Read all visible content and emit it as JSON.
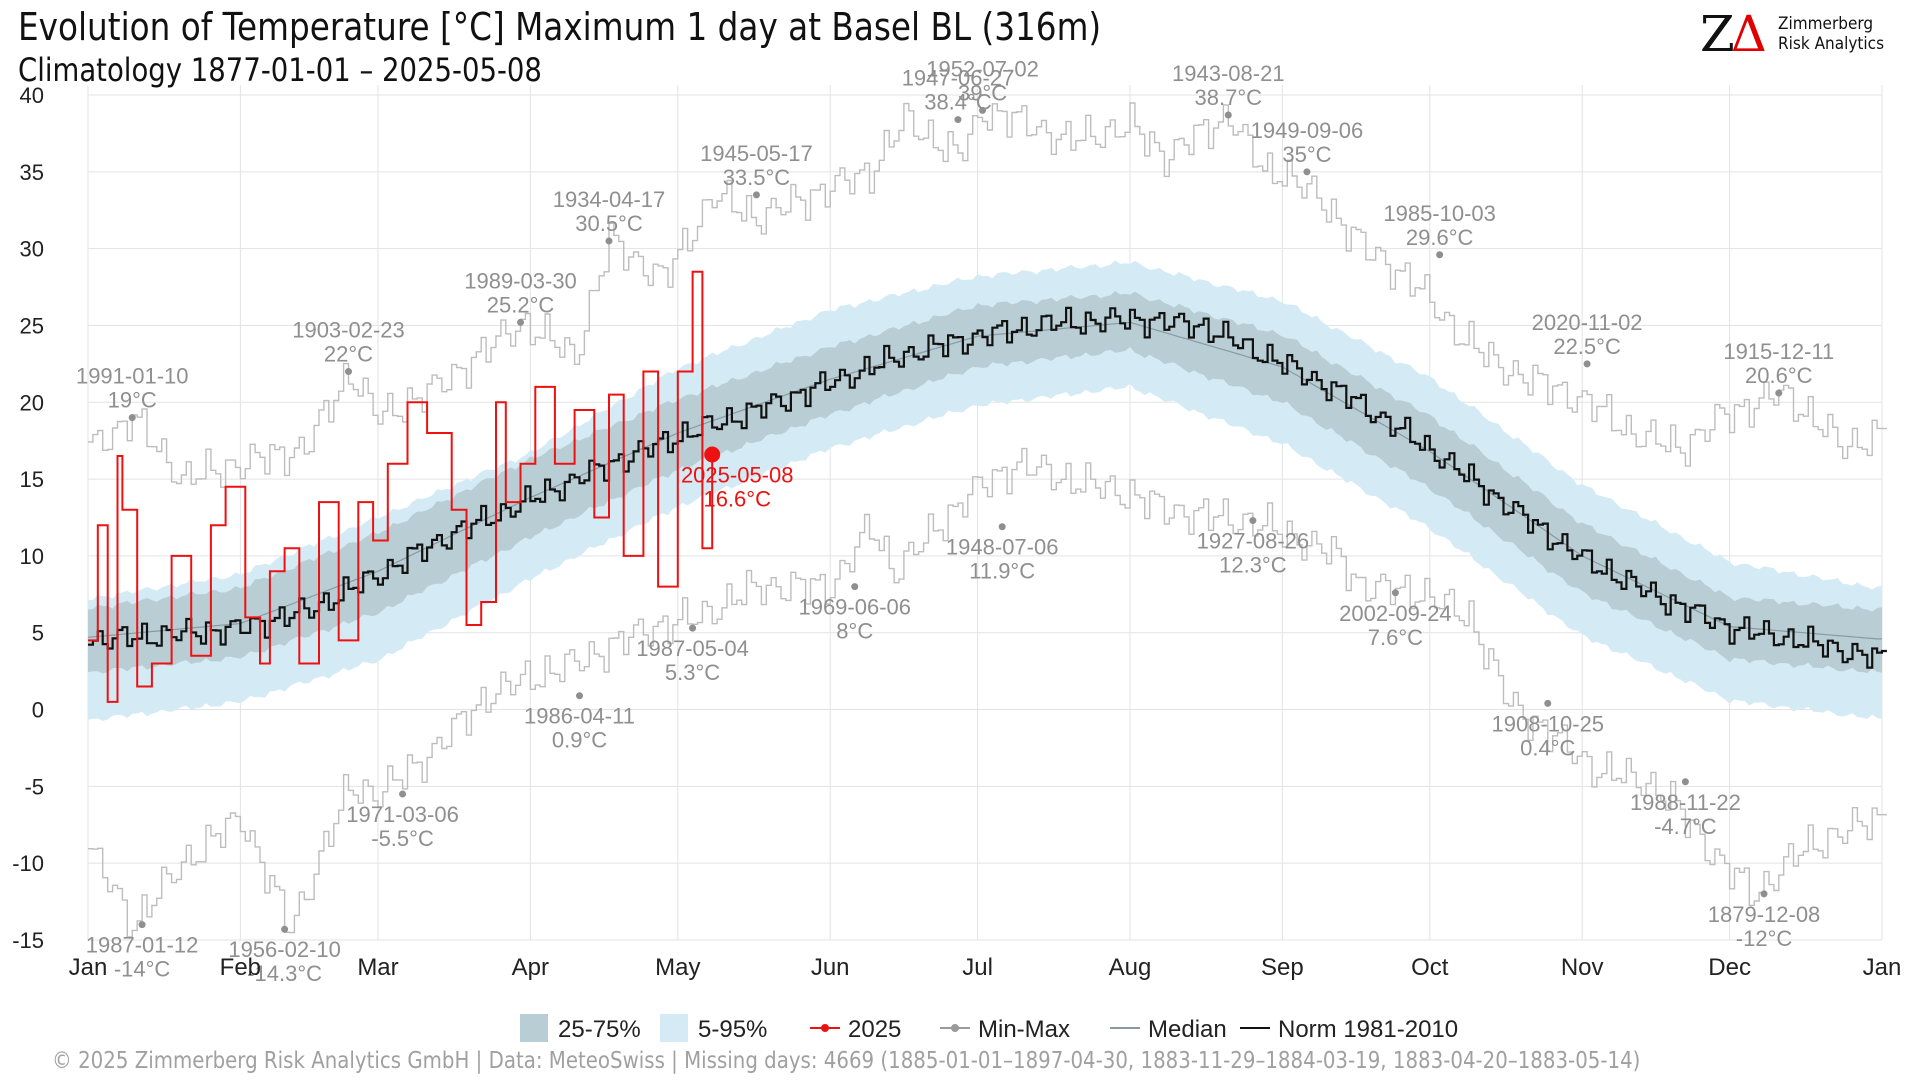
{
  "header": {
    "title": "Evolution of Temperature [°C] Maximum 1 day at Basel  BL (316m)",
    "subtitle": "Climatology 1877-01-01 – 2025-05-08"
  },
  "logo": {
    "mark_z": "Z",
    "mark_delta": "Δ",
    "line1": "Zimmerberg",
    "line2": "Risk Analytics"
  },
  "footer": {
    "text": "©  2025 Zimmerberg Risk Analytics GmbH | Data: MeteoSwiss | Missing days: 4669 (1885-01-01–1897-04-30, 1883-11-29–1884-03-19, 1883-04-20–1883-05-14)"
  },
  "colors": {
    "band_25_75": "#b8cdd4",
    "band_5_95": "#d4ebf5",
    "series_2025": "#ee1111",
    "min_max": "#bdbdbd",
    "annotation": "#8f8f8f",
    "median": "#8a9aa3",
    "norm": "#111111",
    "grid": "#e3e3e3"
  },
  "chart_data": {
    "type": "line",
    "title": "Evolution of Temperature [°C] Maximum 1 day at Basel  BL (316m)",
    "subtitle": "Climatology 1877-01-01 – 2025-05-08",
    "ylim": [
      -15,
      40
    ],
    "yticks": [
      40,
      35,
      30,
      25,
      20,
      15,
      10,
      5,
      0,
      -5,
      -10,
      -15
    ],
    "x_months": [
      "Jan",
      "Feb",
      "Mar",
      "Apr",
      "May",
      "Jun",
      "Jul",
      "Aug",
      "Sep",
      "Oct",
      "Nov",
      "Dec",
      "Jan"
    ],
    "x_unit": "day of year",
    "grid": true,
    "legend_position": "bottom",
    "legend": [
      "25-75%",
      "5-95%",
      "2025",
      "Min-Max",
      "Median",
      "Norm 1981-2010"
    ],
    "series": [
      {
        "name": "Norm 1981-2010",
        "x": [
          1,
          15,
          32,
          46,
          60,
          74,
          91,
          105,
          121,
          135,
          152,
          166,
          182,
          196,
          213,
          227,
          244,
          258,
          274,
          288,
          305,
          319,
          335,
          349,
          365
        ],
        "y": [
          4.5,
          4.8,
          5.3,
          6.5,
          8.8,
          11.3,
          13.7,
          15.7,
          17.8,
          19.3,
          21.3,
          23.0,
          24.3,
          25.1,
          25.4,
          25.0,
          22.5,
          20.2,
          16.9,
          13.6,
          9.8,
          7.5,
          5.3,
          4.5,
          3.3
        ]
      },
      {
        "name": "Median",
        "x": [
          1,
          32,
          60,
          91,
          121,
          152,
          182,
          213,
          244,
          274,
          305,
          335,
          365
        ],
        "y": [
          4.7,
          5.6,
          9.0,
          13.8,
          18.0,
          21.5,
          24.3,
          25.2,
          22.3,
          16.8,
          10.0,
          5.4,
          4.6
        ]
      },
      {
        "name": "25%",
        "x": [
          1,
          32,
          60,
          91,
          121,
          152,
          182,
          213,
          244,
          274,
          305,
          335,
          365
        ],
        "y": [
          2.4,
          3.4,
          6.3,
          11.2,
          15.6,
          19.2,
          22.3,
          23.4,
          20.0,
          14.4,
          7.6,
          3.3,
          2.4
        ]
      },
      {
        "name": "75%",
        "x": [
          1,
          32,
          60,
          91,
          121,
          152,
          182,
          213,
          244,
          274,
          305,
          335,
          365
        ],
        "y": [
          6.6,
          7.9,
          11.5,
          16.3,
          20.2,
          23.6,
          26.3,
          27.1,
          24.4,
          19.1,
          12.1,
          7.3,
          6.5
        ]
      },
      {
        "name": "5%",
        "x": [
          1,
          32,
          60,
          91,
          121,
          152,
          182,
          213,
          244,
          274,
          305,
          335,
          365
        ],
        "y": [
          -0.7,
          0.5,
          3.2,
          8.5,
          13.2,
          17.0,
          19.8,
          21.0,
          17.3,
          11.8,
          4.8,
          0.6,
          -0.6
        ]
      },
      {
        "name": "95%",
        "x": [
          1,
          32,
          60,
          91,
          121,
          152,
          182,
          213,
          244,
          274,
          305,
          335,
          365
        ],
        "y": [
          7.2,
          8.8,
          12.5,
          16.7,
          22.2,
          26.0,
          28.2,
          29.1,
          26.6,
          21.6,
          14.6,
          9.6,
          7.9
        ]
      },
      {
        "name": "Max",
        "x": [
          1,
          10,
          20,
          32,
          45,
          54,
          60,
          72,
          89,
          100,
          107,
          118,
          128,
          137,
          152,
          160,
          167,
          178,
          183,
          193,
          200,
          213,
          220,
          233,
          240,
          244,
          252,
          262,
          270,
          278,
          287,
          298,
          306,
          315,
          325,
          333,
          345,
          352,
          358,
          365
        ],
        "y": [
          17,
          19,
          15,
          16,
          17,
          22,
          19,
          21,
          25.2,
          23,
          30.5,
          28,
          33.5,
          32,
          34,
          35,
          38.4,
          36,
          39,
          38,
          37,
          38,
          36,
          38.7,
          35,
          35,
          33,
          29.6,
          28,
          25,
          22.5,
          21,
          20,
          18,
          17,
          19,
          20.6,
          19,
          17,
          18
        ]
      },
      {
        "name": "Min",
        "x": [
          1,
          10,
          20,
          32,
          42,
          54,
          60,
          70,
          82,
          90,
          100,
          115,
          125,
          137,
          152,
          160,
          165,
          180,
          190,
          200,
          213,
          220,
          235,
          240,
          255,
          260,
          272,
          282,
          290,
          300,
          308,
          318,
          323,
          333,
          340,
          350,
          358,
          365
        ],
        "y": [
          -9,
          -14,
          -10,
          -7,
          -14.3,
          -5,
          -5.5,
          -3,
          0.9,
          2,
          3,
          5.3,
          6,
          8,
          8,
          11.9,
          9,
          14,
          16,
          15,
          14,
          13,
          12.3,
          12,
          10,
          8,
          7.6,
          6,
          0.4,
          -2,
          -4,
          -4.7,
          -6,
          -10,
          -12,
          -9,
          -8,
          -7
        ]
      },
      {
        "name": "2025",
        "x": [
          1,
          3,
          5,
          7,
          8,
          11,
          14,
          18,
          22,
          26,
          29,
          33,
          36,
          38,
          41,
          44,
          48,
          52,
          56,
          59,
          62,
          66,
          70,
          75,
          78,
          81,
          84,
          86,
          89,
          92,
          96,
          100,
          104,
          107,
          110,
          114,
          117,
          121,
          124,
          126,
          128
        ],
        "y": [
          4.5,
          12,
          0.5,
          16.5,
          13,
          1.5,
          3,
          10,
          3.5,
          12,
          14.5,
          6,
          3,
          9,
          10.5,
          3,
          13.5,
          4.5,
          13.5,
          11,
          16,
          20,
          18,
          13,
          5.5,
          7,
          20,
          13.5,
          16,
          21,
          16,
          19.5,
          12.5,
          20.5,
          10,
          22,
          8,
          22,
          28.5,
          10.5,
          16.6
        ]
      }
    ],
    "annotations": {
      "max": [
        {
          "date": "1991-01-10",
          "value": "19°C",
          "x": 10,
          "y": 19
        },
        {
          "date": "1903-02-23",
          "value": "22°C",
          "x": 54,
          "y": 22
        },
        {
          "date": "1989-03-30",
          "value": "25.2°C",
          "x": 89,
          "y": 25.2
        },
        {
          "date": "1934-04-17",
          "value": "30.5°C",
          "x": 107,
          "y": 30.5
        },
        {
          "date": "1945-05-17",
          "value": "33.5°C",
          "x": 137,
          "y": 33.5
        },
        {
          "date": "1947-06-27",
          "value": "38.4°C",
          "x": 178,
          "y": 38.4
        },
        {
          "date": "1952-07-02",
          "value": "39°C",
          "x": 183,
          "y": 39
        },
        {
          "date": "1943-08-21",
          "value": "38.7°C",
          "x": 233,
          "y": 38.7
        },
        {
          "date": "1949-09-06",
          "value": "35°C",
          "x": 249,
          "y": 35
        },
        {
          "date": "1985-10-03",
          "value": "29.6°C",
          "x": 276,
          "y": 29.6
        },
        {
          "date": "2020-11-02",
          "value": "22.5°C",
          "x": 306,
          "y": 22.5
        },
        {
          "date": "1915-12-11",
          "value": "20.6°C",
          "x": 345,
          "y": 20.6
        }
      ],
      "min": [
        {
          "date": "1987-01-12",
          "value": "-14°C",
          "x": 12,
          "y": -14
        },
        {
          "date": "1956-02-10",
          "value": "-14.3°C",
          "x": 41,
          "y": -14.3
        },
        {
          "date": "1971-03-06",
          "value": "-5.5°C",
          "x": 65,
          "y": -5.5
        },
        {
          "date": "1986-04-11",
          "value": "0.9°C",
          "x": 101,
          "y": 0.9
        },
        {
          "date": "1987-05-04",
          "value": "5.3°C",
          "x": 124,
          "y": 5.3
        },
        {
          "date": "1969-06-06",
          "value": "8°C",
          "x": 157,
          "y": 8
        },
        {
          "date": "1948-07-06",
          "value": "11.9°C",
          "x": 187,
          "y": 11.9
        },
        {
          "date": "1927-08-26",
          "value": "12.3°C",
          "x": 238,
          "y": 12.3
        },
        {
          "date": "2002-09-24",
          "value": "7.6°C",
          "x": 267,
          "y": 7.6
        },
        {
          "date": "1908-10-25",
          "value": "0.4°C",
          "x": 298,
          "y": 0.4
        },
        {
          "date": "1988-11-22",
          "value": "-4.7°C",
          "x": 326,
          "y": -4.7
        },
        {
          "date": "1879-12-08",
          "value": "-12°C",
          "x": 342,
          "y": -12
        }
      ],
      "current": {
        "date": "2025-05-08",
        "value": "16.6°C",
        "x": 128,
        "y": 16.6
      }
    }
  },
  "legend": {
    "items": [
      {
        "label": "25-75%",
        "kind": "box",
        "color": "#b8cdd4"
      },
      {
        "label": "5-95%",
        "kind": "box",
        "color": "#d4ebf5"
      },
      {
        "label": "2025",
        "kind": "linepoint",
        "color": "#ee1111"
      },
      {
        "label": "Min-Max",
        "kind": "linepoint",
        "color": "#9a9a9a"
      },
      {
        "label": "Median",
        "kind": "line",
        "color": "#8a9aa3"
      },
      {
        "label": "Norm 1981-2010",
        "kind": "line",
        "color": "#111111"
      }
    ]
  }
}
